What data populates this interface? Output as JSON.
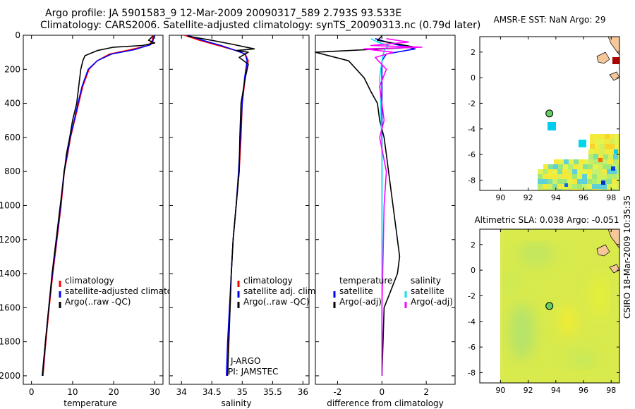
{
  "header": {
    "line1": "Argo profile: JA 5901583_9 12-Mar-2009 20090317_589 2.793S 93.533E",
    "line2": "Climatology: CARS2006. Satellite-adjusted climatology: synTS_20090313.nc (0.79d later)"
  },
  "timestamp": "CSIRO 18-Mar-2009 10:35:35",
  "colors": {
    "climatology": "#ff0000",
    "satellite": "#0000ff",
    "argo": "#000000",
    "sal_satellite": "#00e5ee",
    "sal_argo": "#ff00ff",
    "land": "#f6c79a",
    "float_marker": "#66cc66"
  },
  "chart_data": [
    {
      "id": "temperature",
      "type": "line",
      "xlabel": "temperature",
      "xlim": [
        -2,
        32
      ],
      "ylim": [
        0,
        2050
      ],
      "x_ticks": [
        0,
        10,
        20,
        30
      ],
      "y_ticks": [
        0,
        200,
        400,
        600,
        800,
        1000,
        1200,
        1400,
        1600,
        1800,
        2000
      ],
      "legend": [
        "climatology",
        "satellite-adjusted climatology",
        "Argo(..raw -QC)"
      ],
      "series": [
        {
          "name": "climatology",
          "points": [
            [
              29.5,
              0
            ],
            [
              29.4,
              30
            ],
            [
              28.5,
              60
            ],
            [
              24,
              85
            ],
            [
              19,
              110
            ],
            [
              16,
              150
            ],
            [
              14,
              200
            ],
            [
              12.5,
              300
            ],
            [
              11.5,
              400
            ],
            [
              10.5,
              500
            ],
            [
              9.5,
              600
            ],
            [
              8.8,
              700
            ],
            [
              8,
              800
            ],
            [
              7.2,
              1000
            ],
            [
              6.2,
              1200
            ],
            [
              5.2,
              1400
            ],
            [
              4.3,
              1600
            ],
            [
              3.5,
              1800
            ],
            [
              2.8,
              2000
            ]
          ]
        },
        {
          "name": "satellite-adjusted climatology",
          "points": [
            [
              29.8,
              0
            ],
            [
              29.6,
              30
            ],
            [
              29,
              55
            ],
            [
              25,
              85
            ],
            [
              19.5,
              110
            ],
            [
              16,
              150
            ],
            [
              13.8,
              200
            ],
            [
              12.3,
              300
            ],
            [
              11.3,
              400
            ],
            [
              10.4,
              500
            ],
            [
              9.4,
              600
            ],
            [
              8.7,
              700
            ],
            [
              7.9,
              800
            ],
            [
              7.1,
              1000
            ],
            [
              6.1,
              1200
            ],
            [
              5.1,
              1400
            ],
            [
              4.2,
              1600
            ],
            [
              3.4,
              1800
            ],
            [
              2.7,
              2000
            ]
          ]
        },
        {
          "name": "Argo(..raw -QC)",
          "points": [
            [
              29.5,
              5
            ],
            [
              28.5,
              30
            ],
            [
              30,
              45
            ],
            [
              27,
              60
            ],
            [
              20,
              70
            ],
            [
              16,
              90
            ],
            [
              13,
              120
            ],
            [
              12.5,
              150
            ],
            [
              12,
              200
            ],
            [
              11.5,
              300
            ],
            [
              11,
              400
            ],
            [
              10,
              500
            ],
            [
              9.3,
              600
            ],
            [
              8.5,
              700
            ],
            [
              8,
              800
            ],
            [
              7,
              1000
            ],
            [
              6,
              1200
            ],
            [
              5,
              1400
            ],
            [
              4.2,
              1600
            ],
            [
              3.4,
              1800
            ],
            [
              2.6,
              2000
            ]
          ]
        }
      ]
    },
    {
      "id": "salinity",
      "type": "line",
      "xlabel": "salinity",
      "xlim": [
        33.8,
        36.1
      ],
      "ylim": [
        0,
        2050
      ],
      "x_ticks": [
        34,
        34.5,
        35,
        35.5,
        36
      ],
      "legend": [
        "climatology",
        "satellite adj. clim.",
        "Argo(..raw -QC)"
      ],
      "annotation": [
        "J-ARGO",
        "PI: JAMSTEC"
      ],
      "series": [
        {
          "name": "climatology",
          "points": [
            [
              34.05,
              0
            ],
            [
              34.3,
              30
            ],
            [
              34.6,
              60
            ],
            [
              34.9,
              90
            ],
            [
              35.05,
              110
            ],
            [
              35.1,
              150
            ],
            [
              35.05,
              250
            ],
            [
              35,
              400
            ],
            [
              34.98,
              600
            ],
            [
              34.95,
              800
            ],
            [
              34.9,
              1000
            ],
            [
              34.85,
              1200
            ],
            [
              34.82,
              1400
            ],
            [
              34.8,
              1600
            ],
            [
              34.77,
              1800
            ],
            [
              34.75,
              2000
            ]
          ]
        },
        {
          "name": "satellite adj. clim.",
          "points": [
            [
              34.1,
              0
            ],
            [
              34.35,
              30
            ],
            [
              34.65,
              60
            ],
            [
              34.9,
              90
            ],
            [
              35.05,
              110
            ],
            [
              35.08,
              150
            ],
            [
              35.04,
              250
            ],
            [
              35,
              400
            ],
            [
              34.97,
              600
            ],
            [
              34.94,
              800
            ],
            [
              34.9,
              1000
            ],
            [
              34.85,
              1200
            ],
            [
              34.82,
              1400
            ],
            [
              34.79,
              1600
            ],
            [
              34.76,
              1800
            ],
            [
              34.74,
              2000
            ]
          ]
        },
        {
          "name": "Argo(..raw -QC)",
          "points": [
            [
              34.1,
              5
            ],
            [
              34.5,
              30
            ],
            [
              34.8,
              50
            ],
            [
              35.2,
              80
            ],
            [
              34.9,
              90
            ],
            [
              35.1,
              100
            ],
            [
              34.95,
              130
            ],
            [
              35.1,
              170
            ],
            [
              35.05,
              250
            ],
            [
              34.98,
              400
            ],
            [
              34.96,
              600
            ],
            [
              34.95,
              800
            ],
            [
              34.9,
              1000
            ],
            [
              34.85,
              1200
            ],
            [
              34.82,
              1400
            ],
            [
              34.8,
              1600
            ],
            [
              34.78,
              1800
            ],
            [
              34.76,
              2000
            ]
          ]
        }
      ]
    },
    {
      "id": "difference",
      "type": "line",
      "xlabel": "difference from climatology",
      "xlim": [
        -3,
        3.3
      ],
      "ylim": [
        0,
        2050
      ],
      "x_ticks": [
        -2,
        0,
        2
      ],
      "legend": [
        "temperature",
        "satellite",
        "Argo(-adj)",
        "salinity",
        "satellite",
        "Argo(-adj)"
      ],
      "series": [
        {
          "name": "temperature satellite",
          "points": [
            [
              -0.3,
              20
            ],
            [
              0.5,
              50
            ],
            [
              1.5,
              80
            ],
            [
              0.2,
              110
            ],
            [
              0,
              150
            ],
            [
              0,
              200
            ],
            [
              0,
              300
            ],
            [
              0,
              500
            ],
            [
              0,
              700
            ],
            [
              0,
              1000
            ],
            [
              0,
              1500
            ],
            [
              0,
              2000
            ]
          ]
        },
        {
          "name": "temperature Argo(-adj)",
          "points": [
            [
              0,
              5
            ],
            [
              -0.2,
              30
            ],
            [
              1.5,
              70
            ],
            [
              -3,
              100
            ],
            [
              -1.5,
              150
            ],
            [
              -0.8,
              250
            ],
            [
              -0.5,
              330
            ],
            [
              -0.2,
              400
            ],
            [
              -0.1,
              500
            ],
            [
              0.1,
              600
            ],
            [
              0.2,
              700
            ],
            [
              0.3,
              800
            ],
            [
              0.5,
              1000
            ],
            [
              0.7,
              1200
            ],
            [
              0.8,
              1300
            ],
            [
              0.7,
              1400
            ],
            [
              0.4,
              1500
            ],
            [
              0.1,
              1600
            ],
            [
              0.05,
              1800
            ],
            [
              0,
              2000
            ]
          ]
        },
        {
          "name": "salinity satellite",
          "points": [
            [
              -0.5,
              20
            ],
            [
              -0.2,
              40
            ],
            [
              0.3,
              60
            ],
            [
              0.1,
              90
            ],
            [
              0,
              150
            ],
            [
              -0.1,
              250
            ],
            [
              -0.05,
              400
            ],
            [
              0,
              700
            ],
            [
              0,
              1000
            ],
            [
              0,
              1400
            ],
            [
              0,
              2000
            ]
          ]
        },
        {
          "name": "salinity Argo(-adj)",
          "points": [
            [
              0.2,
              20
            ],
            [
              1.2,
              40
            ],
            [
              -0.5,
              60
            ],
            [
              1.8,
              70
            ],
            [
              -0.8,
              80
            ],
            [
              0.5,
              100
            ],
            [
              -0.3,
              130
            ],
            [
              0.2,
              200
            ],
            [
              -0.1,
              300
            ],
            [
              0.1,
              500
            ],
            [
              -0.1,
              600
            ],
            [
              0.2,
              800
            ],
            [
              0.1,
              1000
            ],
            [
              0.05,
              1300
            ],
            [
              0,
              1600
            ],
            [
              0,
              2000
            ]
          ]
        }
      ]
    },
    {
      "id": "amsr_sst_map",
      "type": "heatmap",
      "title": "AMSR-E SST: NaN Argo: 29",
      "xlim": [
        88.5,
        98.6
      ],
      "ylim": [
        -8.8,
        3.2
      ],
      "x_ticks": [
        90,
        92,
        94,
        96,
        98
      ],
      "y_ticks": [
        -8,
        -6,
        -4,
        -2,
        0,
        2
      ],
      "float_position": [
        93.533,
        -2.793
      ]
    },
    {
      "id": "altimetric_sla_map",
      "type": "heatmap",
      "title": "Altimetric SLA: 0.038 Argo: -0.051",
      "xlim": [
        88.5,
        98.6
      ],
      "ylim": [
        -8.8,
        3.2
      ],
      "x_ticks": [
        90,
        92,
        94,
        96,
        98
      ],
      "y_ticks": [
        -8,
        -6,
        -4,
        -2,
        0,
        2
      ],
      "float_position": [
        93.533,
        -2.793
      ]
    }
  ]
}
